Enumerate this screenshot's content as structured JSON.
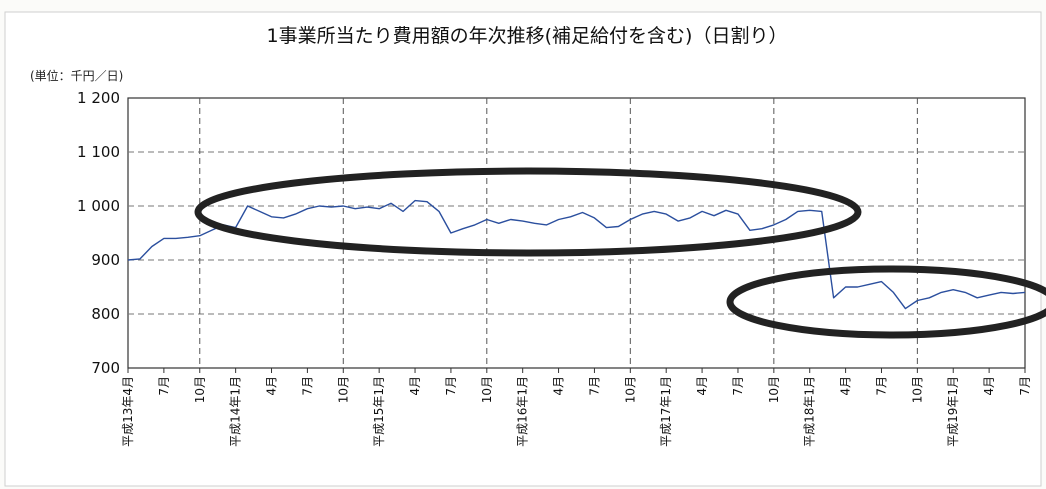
{
  "chart_data": {
    "type": "line",
    "title": "1事業所当たり費用額の年次推移(補足給付を含む)（日割り）",
    "unit_label": "(単位：千円／日)",
    "ylim": [
      700,
      1200
    ],
    "yticks": [
      700,
      800,
      900,
      1000,
      1100,
      1200
    ],
    "ytick_labels": [
      "700",
      "800",
      "900",
      "1 000",
      "1 100",
      "1 200"
    ],
    "grid": {
      "horizontal": "dashed",
      "vertical": "dashed-at-10月"
    },
    "x_labels": [
      "平成13年4月",
      "7月",
      "10月",
      "平成14年1月",
      "4月",
      "7月",
      "10月",
      "平成15年1月",
      "4月",
      "7月",
      "10月",
      "平成16年1月",
      "4月",
      "7月",
      "10月",
      "平成17年1月",
      "4月",
      "7月",
      "10月",
      "平成18年1月",
      "4月",
      "7月",
      "10月",
      "平成19年1月",
      "4月",
      "7月"
    ],
    "x_months": [
      "2001-04",
      "2001-05",
      "2001-06",
      "2001-07",
      "2001-08",
      "2001-09",
      "2001-10",
      "2001-11",
      "2001-12",
      "2002-01",
      "2002-02",
      "2002-03",
      "2002-04",
      "2002-05",
      "2002-06",
      "2002-07",
      "2002-08",
      "2002-09",
      "2002-10",
      "2002-11",
      "2002-12",
      "2003-01",
      "2003-02",
      "2003-03",
      "2003-04",
      "2003-05",
      "2003-06",
      "2003-07",
      "2003-08",
      "2003-09",
      "2003-10",
      "2003-11",
      "2003-12",
      "2004-01",
      "2004-02",
      "2004-03",
      "2004-04",
      "2004-05",
      "2004-06",
      "2004-07",
      "2004-08",
      "2004-09",
      "2004-10",
      "2004-11",
      "2004-12",
      "2005-01",
      "2005-02",
      "2005-03",
      "2005-04",
      "2005-05",
      "2005-06",
      "2005-07",
      "2005-08",
      "2005-09",
      "2005-10",
      "2005-11",
      "2005-12",
      "2006-01",
      "2006-02",
      "2006-03",
      "2006-04",
      "2006-05",
      "2006-06",
      "2006-07",
      "2006-08",
      "2006-09",
      "2006-10",
      "2006-11",
      "2006-12",
      "2007-01",
      "2007-02",
      "2007-03",
      "2007-04",
      "2007-05",
      "2007-06",
      "2007-07"
    ],
    "series": [
      {
        "color": "#2b4f9e",
        "values": [
          900,
          902,
          925,
          940,
          940,
          942,
          945,
          955,
          965,
          960,
          1000,
          990,
          980,
          978,
          985,
          995,
          1000,
          998,
          1000,
          995,
          998,
          995,
          1005,
          990,
          1010,
          1008,
          990,
          950,
          958,
          965,
          975,
          968,
          975,
          972,
          968,
          965,
          975,
          980,
          988,
          978,
          960,
          962,
          975,
          985,
          990,
          985,
          972,
          978,
          990,
          982,
          992,
          985,
          955,
          958,
          965,
          975,
          990,
          992,
          990,
          830,
          850,
          850,
          855,
          860,
          840,
          810,
          825,
          830,
          840,
          845,
          840,
          830,
          835,
          840,
          838,
          840
        ]
      }
    ],
    "annotations": [
      {
        "type": "ellipse",
        "color": "#222222",
        "label": ""
      },
      {
        "type": "ellipse",
        "color": "#222222",
        "label": ""
      }
    ]
  }
}
